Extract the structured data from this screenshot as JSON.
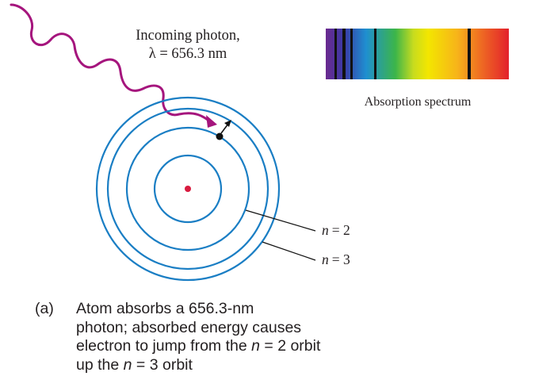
{
  "photon": {
    "title": "Incoming photon,",
    "wavelength_symbol": "λ",
    "wavelength_value": "= 656.3 nm",
    "color": "#a5157d"
  },
  "spectrum": {
    "label": "Absorption spectrum",
    "colors": [
      "#6b2a8f",
      "#2b3fa0",
      "#1f8fd0",
      "#2fb84a",
      "#f3e600",
      "#f39a1a",
      "#e3212c"
    ],
    "dark_lines": [
      "violet",
      "blue",
      "blue",
      "green",
      "red"
    ]
  },
  "atom": {
    "orbit_color": "#1a7ec4",
    "nucleus_color": "#d81b3f",
    "labels": [
      {
        "n": "n",
        "eq": "= 2"
      },
      {
        "n": "n",
        "eq": "= 3"
      }
    ]
  },
  "caption": {
    "label": "(a)",
    "lines": [
      "Atom absorbs a 656.3-nm",
      "photon; absorbed energy causes"
    ],
    "line3_prefix": "electron to jump from the ",
    "line3_n": "n",
    "line3_suffix": " = 2 orbit",
    "line4_prefix": "up the ",
    "line4_n": "n",
    "line4_suffix": " = 3 orbit"
  }
}
